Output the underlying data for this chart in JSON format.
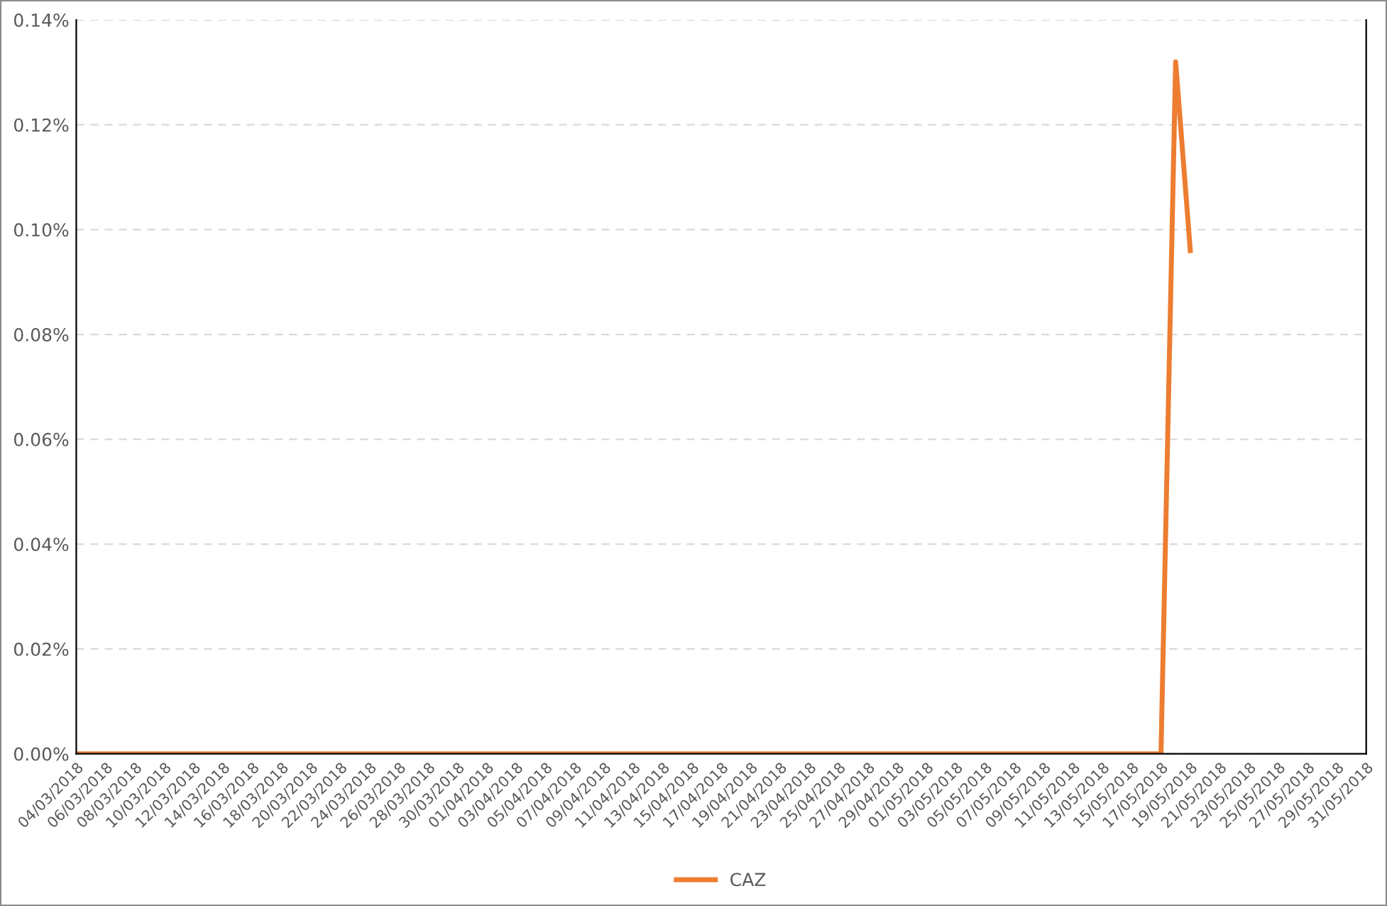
{
  "chart_data": {
    "type": "line",
    "x": [
      "2018-03-04",
      "2018-05-17",
      "2018-05-18",
      "2018-05-19"
    ],
    "series": [
      {
        "name": "CAZ",
        "color": "#ed7d31",
        "values": [
          0,
          0,
          0.132,
          0.096
        ]
      }
    ],
    "xlim": [
      "2018-03-04",
      "2018-05-31"
    ],
    "xticks": [
      {
        "value": "2018-03-04",
        "label": "04/03/2018"
      },
      {
        "value": "2018-03-06",
        "label": "06/03/2018"
      },
      {
        "value": "2018-03-08",
        "label": "08/03/2018"
      },
      {
        "value": "2018-03-10",
        "label": "10/03/2018"
      },
      {
        "value": "2018-03-12",
        "label": "12/03/2018"
      },
      {
        "value": "2018-03-14",
        "label": "14/03/2018"
      },
      {
        "value": "2018-03-16",
        "label": "16/03/2018"
      },
      {
        "value": "2018-03-18",
        "label": "18/03/2018"
      },
      {
        "value": "2018-03-20",
        "label": "20/03/2018"
      },
      {
        "value": "2018-03-22",
        "label": "22/03/2018"
      },
      {
        "value": "2018-03-24",
        "label": "24/03/2018"
      },
      {
        "value": "2018-03-26",
        "label": "26/03/2018"
      },
      {
        "value": "2018-03-28",
        "label": "28/03/2018"
      },
      {
        "value": "2018-03-30",
        "label": "30/03/2018"
      },
      {
        "value": "2018-04-01",
        "label": "01/04/2018"
      },
      {
        "value": "2018-04-03",
        "label": "03/04/2018"
      },
      {
        "value": "2018-04-05",
        "label": "05/04/2018"
      },
      {
        "value": "2018-04-07",
        "label": "07/04/2018"
      },
      {
        "value": "2018-04-09",
        "label": "09/04/2018"
      },
      {
        "value": "2018-04-11",
        "label": "11/04/2018"
      },
      {
        "value": "2018-04-13",
        "label": "13/04/2018"
      },
      {
        "value": "2018-04-15",
        "label": "15/04/2018"
      },
      {
        "value": "2018-04-17",
        "label": "17/04/2018"
      },
      {
        "value": "2018-04-19",
        "label": "19/04/2018"
      },
      {
        "value": "2018-04-21",
        "label": "21/04/2018"
      },
      {
        "value": "2018-04-23",
        "label": "23/04/2018"
      },
      {
        "value": "2018-04-25",
        "label": "25/04/2018"
      },
      {
        "value": "2018-04-27",
        "label": "27/04/2018"
      },
      {
        "value": "2018-04-29",
        "label": "29/04/2018"
      },
      {
        "value": "2018-05-01",
        "label": "01/05/2018"
      },
      {
        "value": "2018-05-03",
        "label": "03/05/2018"
      },
      {
        "value": "2018-05-05",
        "label": "05/05/2018"
      },
      {
        "value": "2018-05-07",
        "label": "07/05/2018"
      },
      {
        "value": "2018-05-09",
        "label": "09/05/2018"
      },
      {
        "value": "2018-05-11",
        "label": "11/05/2018"
      },
      {
        "value": "2018-05-13",
        "label": "13/05/2018"
      },
      {
        "value": "2018-05-15",
        "label": "15/05/2018"
      },
      {
        "value": "2018-05-17",
        "label": "17/05/2018"
      },
      {
        "value": "2018-05-19",
        "label": "19/05/2018"
      },
      {
        "value": "2018-05-21",
        "label": "21/05/2018"
      },
      {
        "value": "2018-05-23",
        "label": "23/05/2018"
      },
      {
        "value": "2018-05-25",
        "label": "25/05/2018"
      },
      {
        "value": "2018-05-27",
        "label": "27/05/2018"
      },
      {
        "value": "2018-05-29",
        "label": "29/05/2018"
      },
      {
        "value": "2018-05-31",
        "label": "31/05/2018"
      }
    ],
    "ylim": [
      0,
      0.14
    ],
    "yticks": [
      {
        "value": 0,
        "label": "0.00%"
      },
      {
        "value": 0.02,
        "label": "0.02%"
      },
      {
        "value": 0.04,
        "label": "0.04%"
      },
      {
        "value": 0.06,
        "label": "0.06%"
      },
      {
        "value": 0.08,
        "label": "0.08%"
      },
      {
        "value": 0.1,
        "label": "0.10%"
      },
      {
        "value": 0.12,
        "label": "0.12%"
      },
      {
        "value": 0.14,
        "label": "0.14%"
      }
    ],
    "grid": "y",
    "legend": "bottom",
    "marker": "none",
    "line_style": "solid"
  }
}
